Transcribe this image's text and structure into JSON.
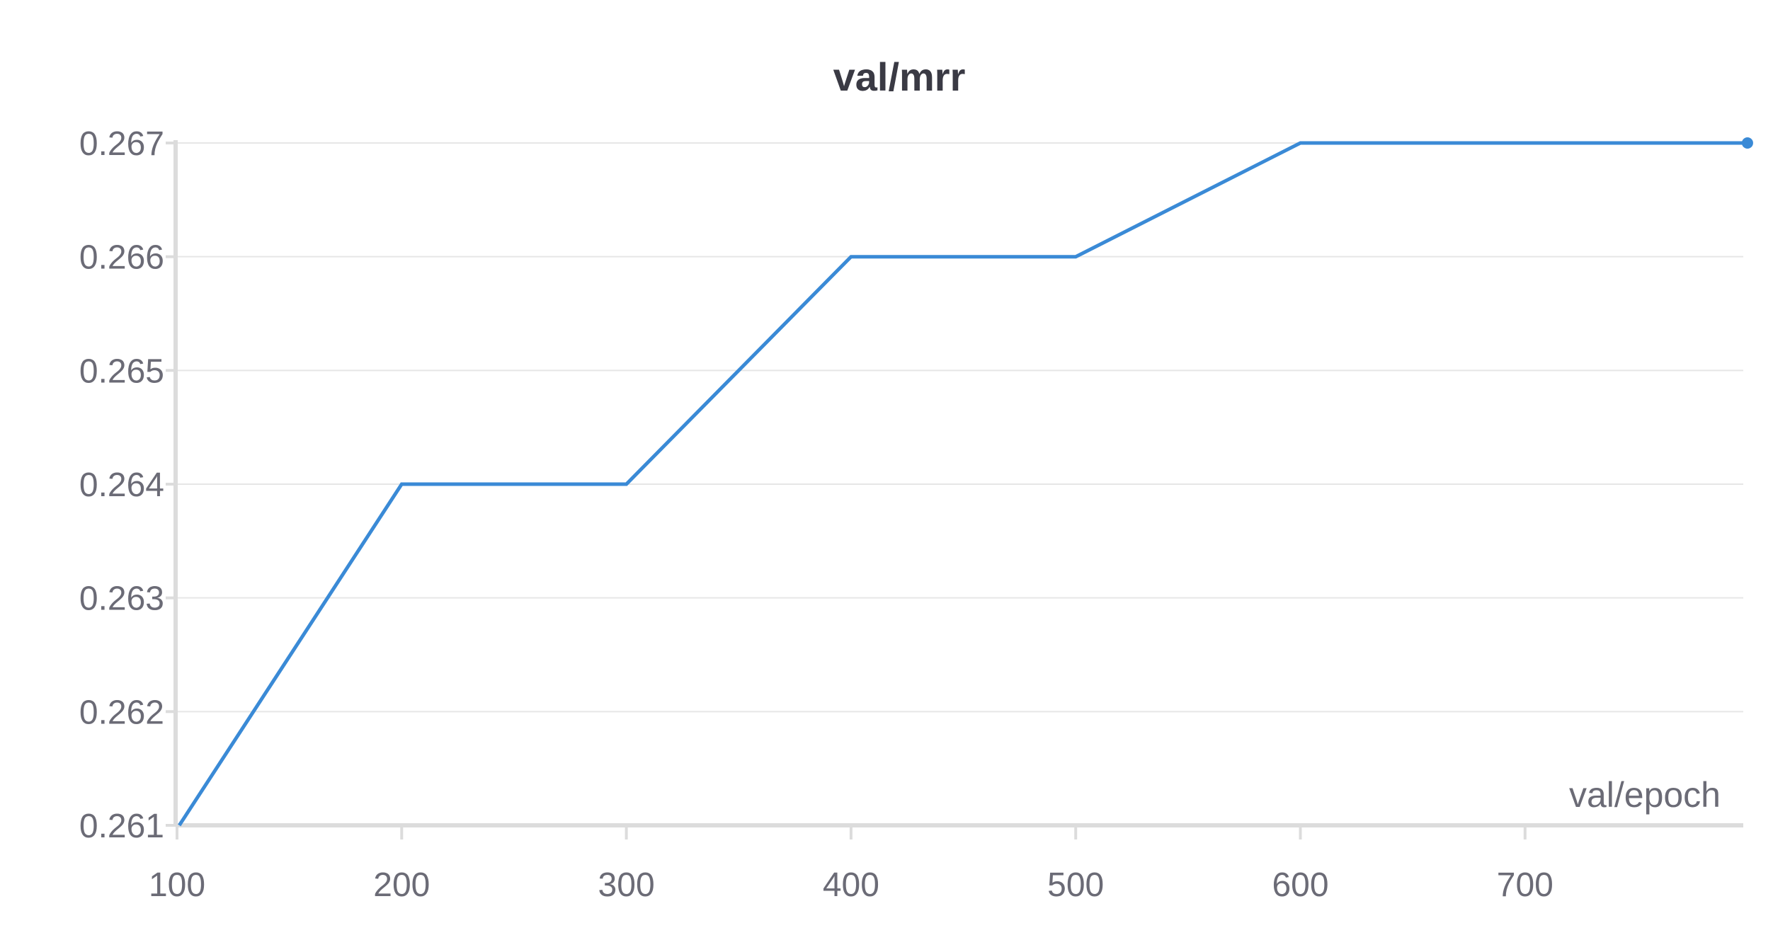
{
  "chart_data": {
    "type": "line",
    "title": "val/mrr",
    "xlabel": "val/epoch",
    "ylabel": "",
    "xlim": [
      100,
      799
    ],
    "ylim": [
      0.261,
      0.267
    ],
    "x_ticks": [
      100,
      200,
      300,
      400,
      500,
      600,
      700
    ],
    "y_ticks": [
      0.261,
      0.262,
      0.263,
      0.264,
      0.265,
      0.266,
      0.267
    ],
    "x_tick_labels": [
      "100",
      "200",
      "300",
      "400",
      "500",
      "600",
      "700"
    ],
    "y_tick_labels": [
      "0.261",
      "0.262",
      "0.263",
      "0.264",
      "0.265",
      "0.266",
      "0.267"
    ],
    "grid": true,
    "legend": "none",
    "series": [
      {
        "x": [
          101,
          200,
          300,
          400,
          500,
          600,
          799
        ],
        "y": [
          0.261,
          0.264,
          0.264,
          0.266,
          0.266,
          0.267,
          0.267
        ],
        "color": "#3a8ad6",
        "end_marker": true
      }
    ],
    "colors": {
      "line": "#3a8ad6",
      "grid": "#e6e6e6",
      "axis": "#dcdcdc",
      "text": "#6b6b76",
      "title": "#3a3a44"
    }
  }
}
